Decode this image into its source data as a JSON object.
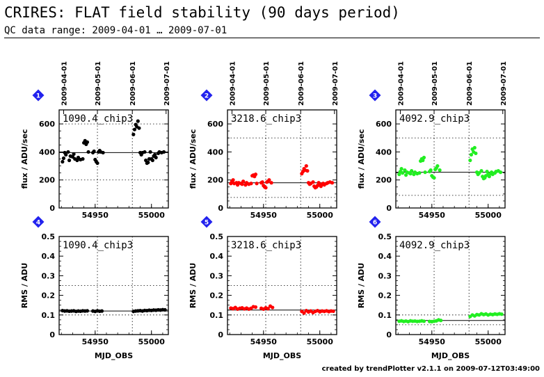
{
  "header": {
    "title": "CRIRES: FLAT field stability (90 days period)",
    "subtitle": "QC data range: 2009-04-01 … 2009-07-01"
  },
  "footer": {
    "credit": "created by trendPlotter v2.1.1 on 2009-07-12T03:49:00"
  },
  "chart_data": [
    {
      "type": "scatter",
      "panel": 1,
      "badge": "1",
      "label": "1090.4_chip3",
      "color": "#000000",
      "ylabel": "flux / ADU/sec",
      "xlim": [
        54918,
        55015
      ],
      "ylim": [
        0,
        700
      ],
      "yticks": [
        0,
        200,
        400,
        600
      ],
      "xticks": [
        54950,
        55000
      ],
      "date_ticks": [
        "2009-04-01",
        "2009-05-01",
        "2009-06-01",
        "2009-07-01"
      ],
      "ref_line": 395,
      "dotted_lines": [
        200,
        600
      ],
      "points": [
        [
          54921,
          330
        ],
        [
          54922,
          355
        ],
        [
          54923,
          395
        ],
        [
          54924,
          380
        ],
        [
          54926,
          400
        ],
        [
          54927,
          340
        ],
        [
          54928,
          370
        ],
        [
          54930,
          365
        ],
        [
          54931,
          385
        ],
        [
          54932,
          350
        ],
        [
          54934,
          340
        ],
        [
          54935,
          360
        ],
        [
          54937,
          345
        ],
        [
          54939,
          350
        ],
        [
          54940,
          465
        ],
        [
          54941,
          480
        ],
        [
          54942,
          455
        ],
        [
          54943,
          470
        ],
        [
          54944,
          400
        ],
        [
          54948,
          395
        ],
        [
          54949,
          405
        ],
        [
          54950,
          345
        ],
        [
          54951,
          330
        ],
        [
          54952,
          320
        ],
        [
          54953,
          400
        ],
        [
          54954,
          410
        ],
        [
          54955,
          400
        ],
        [
          54957,
          395
        ],
        [
          54984,
          525
        ],
        [
          54985,
          560
        ],
        [
          54986,
          595
        ],
        [
          54987,
          580
        ],
        [
          54988,
          620
        ],
        [
          54989,
          570
        ],
        [
          54990,
          395
        ],
        [
          54991,
          380
        ],
        [
          54992,
          395
        ],
        [
          54994,
          400
        ],
        [
          54995,
          340
        ],
        [
          54996,
          320
        ],
        [
          54997,
          325
        ],
        [
          54998,
          350
        ],
        [
          54999,
          400
        ],
        [
          55000,
          350
        ],
        [
          55001,
          340
        ],
        [
          55002,
          370
        ],
        [
          55003,
          380
        ],
        [
          55004,
          360
        ],
        [
          55006,
          390
        ],
        [
          55007,
          400
        ],
        [
          55009,
          395
        ],
        [
          55011,
          400
        ]
      ]
    },
    {
      "type": "scatter",
      "panel": 2,
      "badge": "2",
      "label": "3218.6_chip3",
      "color": "#ff0000",
      "ylabel": "flux / ADU/sec",
      "xlim": [
        54918,
        55015
      ],
      "ylim": [
        0,
        700
      ],
      "yticks": [
        0,
        200,
        400,
        600
      ],
      "xticks": [
        54950,
        55000
      ],
      "date_ticks": [
        "2009-04-01",
        "2009-05-01",
        "2009-06-01",
        "2009-07-01"
      ],
      "ref_line": 180,
      "dotted_lines": [
        75,
        500
      ],
      "points": [
        [
          54921,
          175
        ],
        [
          54922,
          190
        ],
        [
          54923,
          200
        ],
        [
          54924,
          175
        ],
        [
          54926,
          180
        ],
        [
          54927,
          165
        ],
        [
          54928,
          180
        ],
        [
          54930,
          175
        ],
        [
          54931,
          170
        ],
        [
          54932,
          190
        ],
        [
          54934,
          165
        ],
        [
          54935,
          180
        ],
        [
          54937,
          170
        ],
        [
          54939,
          175
        ],
        [
          54940,
          230
        ],
        [
          54941,
          235
        ],
        [
          54942,
          225
        ],
        [
          54943,
          240
        ],
        [
          54944,
          175
        ],
        [
          54948,
          180
        ],
        [
          54949,
          185
        ],
        [
          54950,
          160
        ],
        [
          54951,
          150
        ],
        [
          54952,
          145
        ],
        [
          54953,
          185
        ],
        [
          54954,
          190
        ],
        [
          54955,
          200
        ],
        [
          54957,
          180
        ],
        [
          54984,
          245
        ],
        [
          54985,
          260
        ],
        [
          54986,
          280
        ],
        [
          54987,
          270
        ],
        [
          54988,
          300
        ],
        [
          54989,
          265
        ],
        [
          54990,
          180
        ],
        [
          54991,
          170
        ],
        [
          54992,
          175
        ],
        [
          54994,
          185
        ],
        [
          54995,
          155
        ],
        [
          54996,
          145
        ],
        [
          54997,
          150
        ],
        [
          54998,
          160
        ],
        [
          54999,
          180
        ],
        [
          55000,
          165
        ],
        [
          55001,
          155
        ],
        [
          55002,
          170
        ],
        [
          55003,
          175
        ],
        [
          55004,
          165
        ],
        [
          55006,
          175
        ],
        [
          55007,
          180
        ],
        [
          55009,
          185
        ],
        [
          55011,
          180
        ]
      ]
    },
    {
      "type": "scatter",
      "panel": 3,
      "badge": "3",
      "label": "4092.9_chip3",
      "color": "#22ee22",
      "ylabel": "flux / ADU/sec",
      "xlim": [
        54918,
        55015
      ],
      "ylim": [
        0,
        700
      ],
      "yticks": [
        0,
        200,
        400,
        600
      ],
      "xticks": [
        54950,
        55000
      ],
      "date_ticks": [
        "2009-04-01",
        "2009-05-01",
        "2009-06-01",
        "2009-07-01"
      ],
      "ref_line": 255,
      "dotted_lines": [
        90,
        500
      ],
      "points": [
        [
          54921,
          240
        ],
        [
          54922,
          260
        ],
        [
          54923,
          280
        ],
        [
          54924,
          250
        ],
        [
          54926,
          270
        ],
        [
          54927,
          235
        ],
        [
          54928,
          255
        ],
        [
          54930,
          250
        ],
        [
          54931,
          245
        ],
        [
          54932,
          265
        ],
        [
          54934,
          240
        ],
        [
          54935,
          255
        ],
        [
          54937,
          245
        ],
        [
          54939,
          250
        ],
        [
          54940,
          335
        ],
        [
          54941,
          350
        ],
        [
          54942,
          340
        ],
        [
          54943,
          360
        ],
        [
          54944,
          255
        ],
        [
          54948,
          260
        ],
        [
          54949,
          270
        ],
        [
          54950,
          230
        ],
        [
          54951,
          220
        ],
        [
          54952,
          215
        ],
        [
          54953,
          275
        ],
        [
          54954,
          285
        ],
        [
          54955,
          300
        ],
        [
          54957,
          270
        ],
        [
          54984,
          340
        ],
        [
          54985,
          380
        ],
        [
          54986,
          420
        ],
        [
          54987,
          400
        ],
        [
          54988,
          430
        ],
        [
          54989,
          390
        ],
        [
          54990,
          255
        ],
        [
          54991,
          240
        ],
        [
          54992,
          250
        ],
        [
          54994,
          265
        ],
        [
          54995,
          225
        ],
        [
          54996,
          210
        ],
        [
          54997,
          215
        ],
        [
          54998,
          230
        ],
        [
          54999,
          260
        ],
        [
          55000,
          240
        ],
        [
          55001,
          225
        ],
        [
          55002,
          245
        ],
        [
          55003,
          255
        ],
        [
          55004,
          240
        ],
        [
          55006,
          250
        ],
        [
          55007,
          260
        ],
        [
          55009,
          265
        ],
        [
          55011,
          255
        ]
      ]
    },
    {
      "type": "scatter",
      "panel": 4,
      "badge": "4",
      "label": "1090.4_chip3",
      "color": "#000000",
      "ylabel": "RMS / ADU",
      "xlabel": "MJD_OBS",
      "xlim": [
        54918,
        55015
      ],
      "ylim": [
        0,
        0.5
      ],
      "yticks": [
        0,
        0.1,
        0.2,
        0.3,
        0.4,
        0.5
      ],
      "xticks": [
        54950,
        55000
      ],
      "ref_line": 0.12,
      "dotted_lines": [
        0.1,
        0.25
      ],
      "points": [
        [
          54921,
          0.122
        ],
        [
          54923,
          0.12
        ],
        [
          54925,
          0.121
        ],
        [
          54927,
          0.119
        ],
        [
          54929,
          0.12
        ],
        [
          54931,
          0.121
        ],
        [
          54933,
          0.118
        ],
        [
          54935,
          0.12
        ],
        [
          54937,
          0.119
        ],
        [
          54939,
          0.121
        ],
        [
          54941,
          0.12
        ],
        [
          54943,
          0.121
        ],
        [
          54948,
          0.12
        ],
        [
          54950,
          0.118
        ],
        [
          54952,
          0.121
        ],
        [
          54954,
          0.119
        ],
        [
          54956,
          0.12
        ],
        [
          54984,
          0.118
        ],
        [
          54986,
          0.12
        ],
        [
          54988,
          0.121
        ],
        [
          54990,
          0.122
        ],
        [
          54992,
          0.12
        ],
        [
          54994,
          0.123
        ],
        [
          54996,
          0.122
        ],
        [
          54998,
          0.124
        ],
        [
          55000,
          0.123
        ],
        [
          55002,
          0.125
        ],
        [
          55004,
          0.124
        ],
        [
          55006,
          0.126
        ],
        [
          55008,
          0.125
        ],
        [
          55010,
          0.127
        ],
        [
          55012,
          0.126
        ]
      ]
    },
    {
      "type": "scatter",
      "panel": 5,
      "badge": "5",
      "label": "3218.6_chip3",
      "color": "#ff0000",
      "ylabel": "RMS / ADU",
      "xlabel": "MJD_OBS",
      "xlim": [
        54918,
        55015
      ],
      "ylim": [
        0,
        0.5
      ],
      "yticks": [
        0,
        0.1,
        0.2,
        0.3,
        0.4,
        0.5
      ],
      "xticks": [
        54950,
        55000
      ],
      "ref_line": 0.125,
      "dotted_lines": [
        0.1,
        0.25
      ],
      "points": [
        [
          54921,
          0.135
        ],
        [
          54923,
          0.132
        ],
        [
          54925,
          0.138
        ],
        [
          54927,
          0.13
        ],
        [
          54929,
          0.134
        ],
        [
          54931,
          0.136
        ],
        [
          54933,
          0.131
        ],
        [
          54935,
          0.135
        ],
        [
          54937,
          0.13
        ],
        [
          54939,
          0.134
        ],
        [
          54941,
          0.142
        ],
        [
          54943,
          0.14
        ],
        [
          54948,
          0.134
        ],
        [
          54950,
          0.13
        ],
        [
          54952,
          0.136
        ],
        [
          54954,
          0.132
        ],
        [
          54956,
          0.145
        ],
        [
          54958,
          0.138
        ],
        [
          54984,
          0.118
        ],
        [
          54986,
          0.11
        ],
        [
          54988,
          0.122
        ],
        [
          54990,
          0.115
        ],
        [
          54992,
          0.12
        ],
        [
          54994,
          0.112
        ],
        [
          54996,
          0.118
        ],
        [
          54998,
          0.122
        ],
        [
          55000,
          0.116
        ],
        [
          55002,
          0.12
        ],
        [
          55004,
          0.118
        ],
        [
          55006,
          0.121
        ],
        [
          55008,
          0.117
        ],
        [
          55010,
          0.12
        ],
        [
          55012,
          0.119
        ]
      ]
    },
    {
      "type": "scatter",
      "panel": 6,
      "badge": "6",
      "label": "4092.9_chip3",
      "color": "#22ee22",
      "ylabel": "RMS / ADU",
      "xlabel": "MJD_OBS",
      "xlim": [
        54918,
        55015
      ],
      "ylim": [
        0,
        0.5
      ],
      "yticks": [
        0,
        0.1,
        0.2,
        0.3,
        0.4,
        0.5
      ],
      "xticks": [
        54950,
        55000
      ],
      "ref_line": 0.072,
      "dotted_lines": [
        0.05,
        0.1
      ],
      "points": [
        [
          54921,
          0.068
        ],
        [
          54923,
          0.07
        ],
        [
          54925,
          0.067
        ],
        [
          54927,
          0.069
        ],
        [
          54929,
          0.066
        ],
        [
          54931,
          0.07
        ],
        [
          54933,
          0.068
        ],
        [
          54935,
          0.069
        ],
        [
          54937,
          0.067
        ],
        [
          54939,
          0.068
        ],
        [
          54941,
          0.07
        ],
        [
          54943,
          0.068
        ],
        [
          54948,
          0.067
        ],
        [
          54950,
          0.066
        ],
        [
          54952,
          0.068
        ],
        [
          54954,
          0.07
        ],
        [
          54956,
          0.075
        ],
        [
          54958,
          0.072
        ],
        [
          54984,
          0.092
        ],
        [
          54986,
          0.1
        ],
        [
          54988,
          0.095
        ],
        [
          54990,
          0.102
        ],
        [
          54992,
          0.1
        ],
        [
          54994,
          0.106
        ],
        [
          54996,
          0.102
        ],
        [
          54998,
          0.105
        ],
        [
          55000,
          0.1
        ],
        [
          55002,
          0.104
        ],
        [
          55004,
          0.102
        ],
        [
          55006,
          0.105
        ],
        [
          55008,
          0.103
        ],
        [
          55010,
          0.106
        ],
        [
          55012,
          0.104
        ]
      ]
    }
  ]
}
